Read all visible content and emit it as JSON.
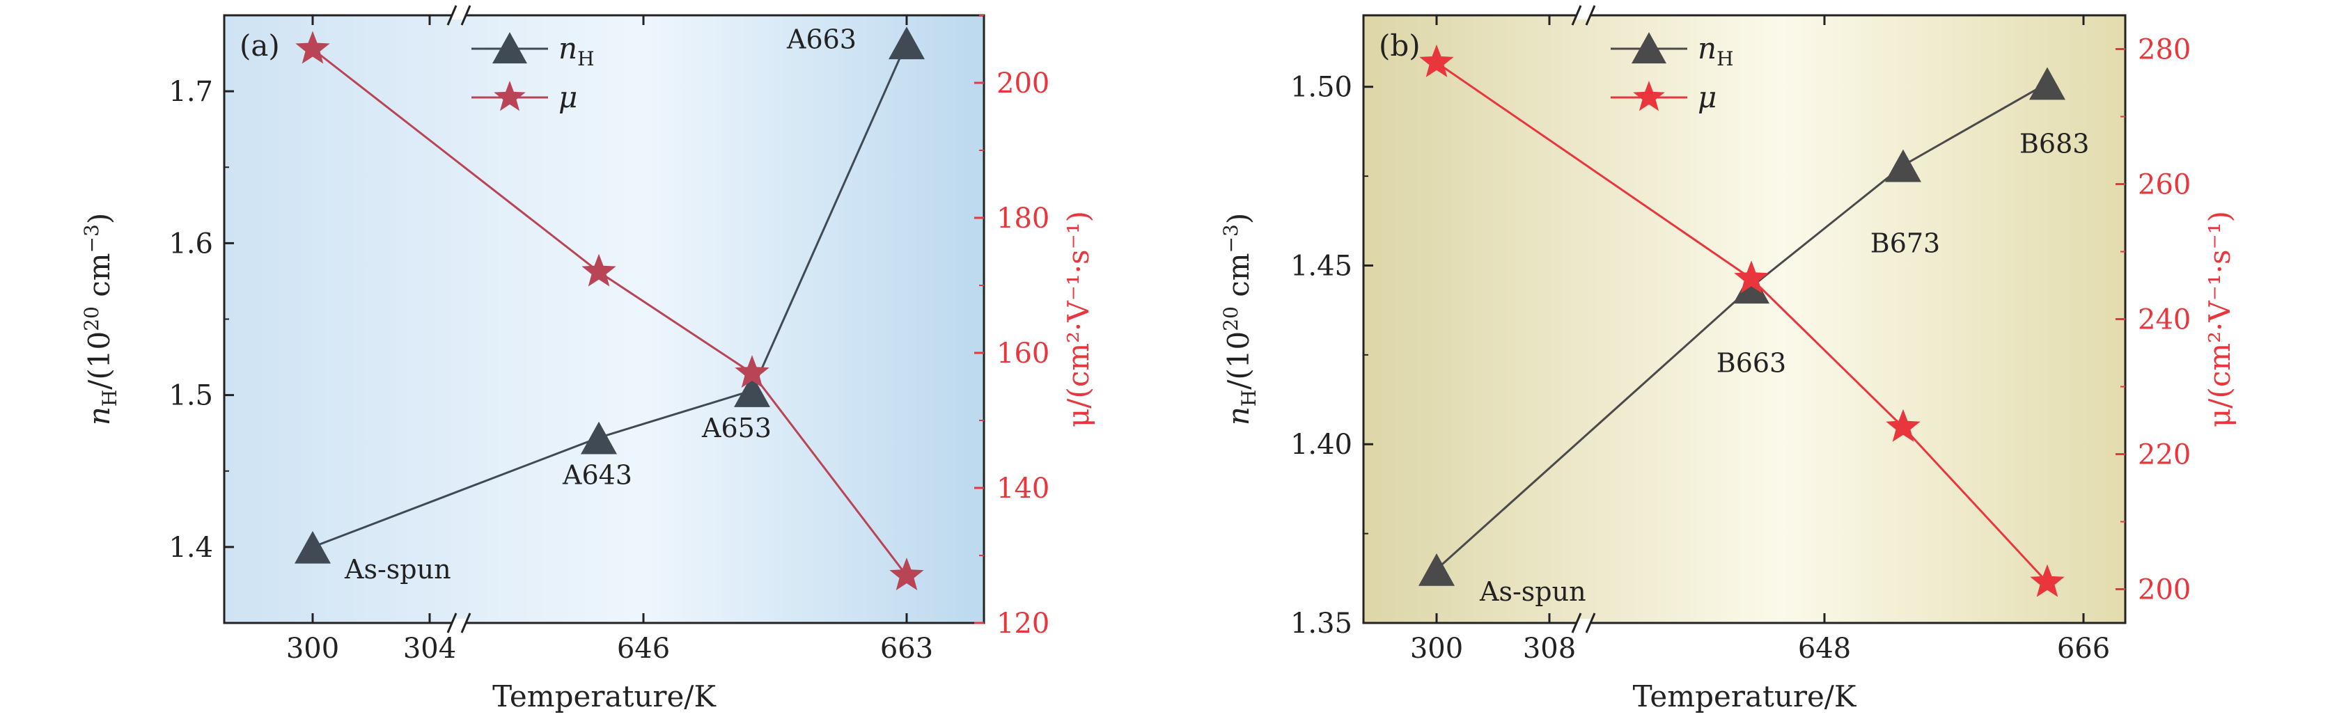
{
  "chart_data": [
    {
      "type": "line",
      "panel_label": "(a)",
      "xlabel": "Temperature/K",
      "ylabel_left": {
        "main": "n",
        "sub": "H",
        "rest": "/(10",
        "sup1": "20",
        "rest2": " cm",
        "sup2": "−3",
        "close": ")"
      },
      "ylabel_right": {
        "text": "μ/(cm²·V⁻¹·s⁻¹)"
      },
      "x_ticks": [
        "300",
        "304",
        "646",
        "663"
      ],
      "left_ylim": [
        1.35,
        1.75
      ],
      "left_yticks": [
        "1.4",
        "1.5",
        "1.6",
        "1.7"
      ],
      "right_ylim": [
        120,
        210
      ],
      "right_yticks": [
        "120",
        "140",
        "160",
        "180",
        "200"
      ],
      "legend": {
        "entries": [
          {
            "main": "n",
            "sub": "H"
          },
          {
            "main": "μ",
            "sub": ""
          }
        ],
        "placement": "top-center"
      },
      "background": {
        "edge": "#cfe3f3",
        "center": "#eef6fd",
        "edge_right": "#bcd9ee"
      },
      "series": [
        {
          "name": "nH",
          "axis": "left",
          "marker": "triangle",
          "color": "#404a55",
          "points": [
            {
              "x": "300",
              "y": 1.4,
              "label": "As-spun"
            },
            {
              "x": "643",
              "y": 1.472,
              "label": "A643"
            },
            {
              "x": "653",
              "y": 1.503,
              "label": "A653"
            },
            {
              "x": "663",
              "y": 1.732,
              "label": "A663"
            }
          ]
        },
        {
          "name": "μ",
          "axis": "right",
          "marker": "star",
          "color": "#b84455",
          "points": [
            {
              "x": "300",
              "y": 205
            },
            {
              "x": "643",
              "y": 172
            },
            {
              "x": "653",
              "y": 157
            },
            {
              "x": "663",
              "y": 127
            }
          ]
        }
      ]
    },
    {
      "type": "line",
      "panel_label": "(b)",
      "xlabel": "Temperature/K",
      "ylabel_left": {
        "main": "n",
        "sub": "H",
        "rest": "/(10",
        "sup1": "20",
        "rest2": " cm",
        "sup2": "−3",
        "close": ")"
      },
      "ylabel_right": {
        "text": "μ/(cm²·V⁻¹·s⁻¹)"
      },
      "x_ticks": [
        "300",
        "308",
        "648",
        "666"
      ],
      "left_ylim": [
        1.35,
        1.52
      ],
      "left_yticks": [
        "1.35",
        "1.40",
        "1.45",
        "1.50"
      ],
      "right_ylim": [
        195,
        285
      ],
      "right_yticks": [
        "200",
        "220",
        "240",
        "260",
        "280"
      ],
      "legend": {
        "entries": [
          {
            "main": "n",
            "sub": "H"
          },
          {
            "main": "μ",
            "sub": ""
          }
        ],
        "placement": "top-center"
      },
      "background": {
        "edge": "#ddd6a8",
        "center": "#fbf9ea",
        "edge_right": "#e2dcae"
      },
      "series": [
        {
          "name": "nH",
          "axis": "left",
          "marker": "triangle",
          "color": "#4a4a4a",
          "points": [
            {
              "x": "300",
              "y": 1.365,
              "label": "As-spun"
            },
            {
              "x": "643",
              "y": 1.444,
              "label": "B663"
            },
            {
              "x": "653",
              "y": 1.478,
              "label": "B673"
            },
            {
              "x": "663",
              "y": 1.501,
              "label": "B683"
            }
          ]
        },
        {
          "name": "μ",
          "axis": "right",
          "marker": "star",
          "color": "#e8363c",
          "points": [
            {
              "x": "300",
              "y": 278
            },
            {
              "x": "643",
              "y": 246
            },
            {
              "x": "653",
              "y": 224
            },
            {
              "x": "663",
              "y": 201
            }
          ]
        }
      ]
    }
  ]
}
